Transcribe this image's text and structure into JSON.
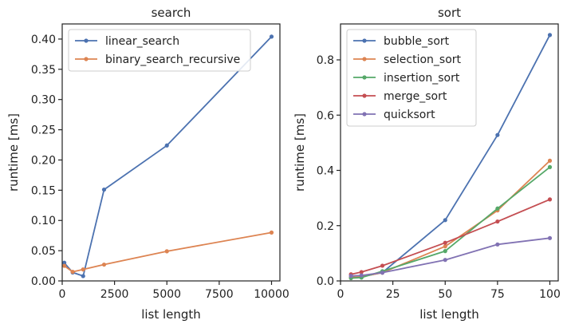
{
  "chart_data": [
    {
      "type": "line",
      "title": "search",
      "xlabel": "list length",
      "ylabel": "runtime [ms]",
      "xlim": [
        0,
        10400
      ],
      "ylim": [
        0,
        0.425
      ],
      "xticks": [
        0,
        2500,
        5000,
        7500,
        10000
      ],
      "xtick_labels": [
        "0",
        "2500",
        "5000",
        "7500",
        "10000"
      ],
      "yticks": [
        0,
        0.05,
        0.1,
        0.15,
        0.2,
        0.25,
        0.3,
        0.35,
        0.4
      ],
      "ytick_labels": [
        "0.00",
        "0.05",
        "0.10",
        "0.15",
        "0.20",
        "0.25",
        "0.30",
        "0.35",
        "0.40"
      ],
      "grid": false,
      "legend": "top-left",
      "x": [
        100,
        500,
        1000,
        2000,
        5000,
        10000
      ],
      "series": [
        {
          "name": "linear_search",
          "color": "#4c72b0",
          "values": [
            0.03,
            0.014,
            0.008,
            0.151,
            0.224,
            0.404
          ]
        },
        {
          "name": "binary_search_recursive",
          "color": "#dd8452",
          "values": [
            0.025,
            0.015,
            0.019,
            0.027,
            0.049,
            0.08
          ]
        }
      ]
    },
    {
      "type": "line",
      "title": "sort",
      "xlabel": "list length",
      "ylabel": "runtime [ms]",
      "xlim": [
        0,
        104
      ],
      "ylim": [
        0,
        0.93
      ],
      "xticks": [
        0,
        25,
        50,
        75,
        100
      ],
      "xtick_labels": [
        "0",
        "25",
        "50",
        "75",
        "100"
      ],
      "yticks": [
        0,
        0.2,
        0.4,
        0.6,
        0.8
      ],
      "ytick_labels": [
        "0.0",
        "0.2",
        "0.4",
        "0.6",
        "0.8"
      ],
      "grid": false,
      "legend": "top-left",
      "x": [
        5,
        10,
        20,
        50,
        75,
        100
      ],
      "series": [
        {
          "name": "bubble_sort",
          "color": "#4c72b0",
          "values": [
            0.012,
            0.015,
            0.03,
            0.22,
            0.528,
            0.89
          ]
        },
        {
          "name": "selection_sort",
          "color": "#dd8452",
          "values": [
            0.012,
            0.015,
            0.03,
            0.125,
            0.255,
            0.435
          ]
        },
        {
          "name": "insertion_sort",
          "color": "#55a868",
          "values": [
            0.01,
            0.012,
            0.035,
            0.108,
            0.262,
            0.412
          ]
        },
        {
          "name": "merge_sort",
          "color": "#c44e52",
          "values": [
            0.024,
            0.032,
            0.055,
            0.138,
            0.215,
            0.295
          ]
        },
        {
          "name": "quicksort",
          "color": "#8172b3",
          "values": [
            0.018,
            0.02,
            0.03,
            0.076,
            0.132,
            0.155
          ]
        }
      ]
    }
  ]
}
